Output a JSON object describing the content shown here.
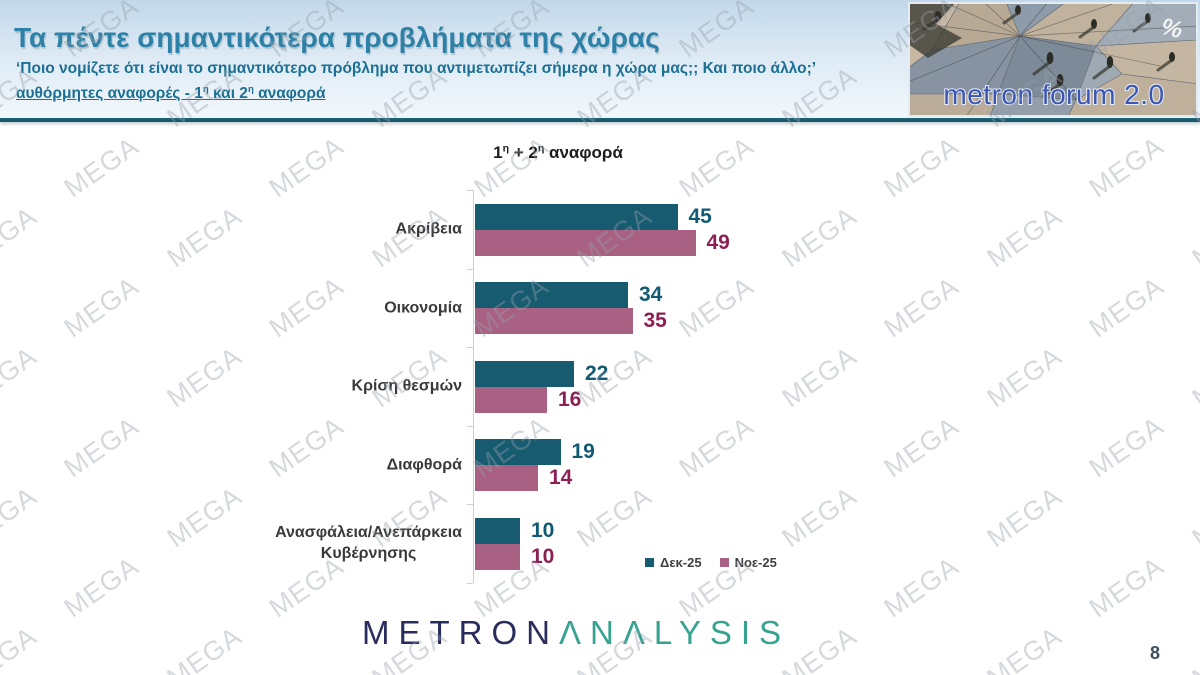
{
  "header": {
    "title": "Τα πέντε σημαντικότερα προβλήματα της χώρας",
    "subtitle": "‘Ποιο νομίζετε ότι είναι το σημαντικότερο πρόβλημα που αντιμετωπίζει σήμερα η χώρα μας;; Και ποιο άλλο;’",
    "subtitle_underlined": "αυθόρμητες αναφορές - 1η και 2η αναφορά"
  },
  "logo": {
    "text": "metron forum 2.0",
    "percent_symbol": "%"
  },
  "chart_data": {
    "type": "bar",
    "orientation": "horizontal",
    "title": "1η + 2η αναφορά",
    "categories": [
      "Ακρίβεια",
      "Οικονομία",
      "Κρίση θεσμών",
      "Διαφθορά",
      "Ανασφάλεια/Ανεπάρκεια\nΚυβέρνησης"
    ],
    "series": [
      {
        "name": "Δεκ-25",
        "color": "#175b71",
        "label_color": "#115a73",
        "values": [
          45,
          34,
          22,
          19,
          10
        ]
      },
      {
        "name": "Νοε-25",
        "color": "#a96183",
        "label_color": "#8e1f55",
        "values": [
          49,
          35,
          16,
          14,
          10
        ]
      }
    ],
    "xlim": [
      0,
      55
    ],
    "grid": false,
    "value_labels": true,
    "legend_position": "bottom-right",
    "axis_color": "#cfcfcf"
  },
  "footer": {
    "brand_metron": "METRON",
    "brand_analysis": "ANALYSIS",
    "brand_analysis_display": "ΛΝΛLYSIS",
    "page_number": "8"
  },
  "watermark": {
    "text": "MEGA"
  }
}
